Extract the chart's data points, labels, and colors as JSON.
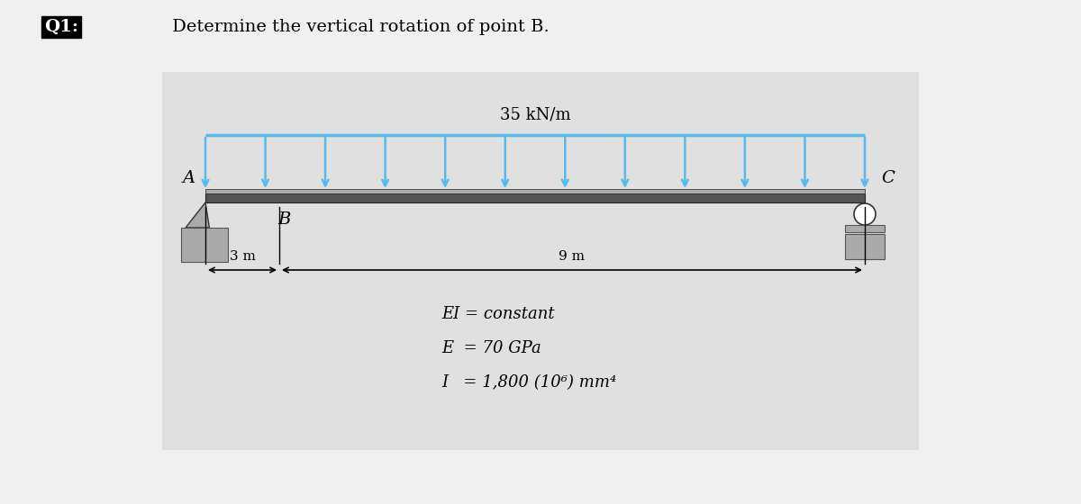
{
  "title_q": "Q1:",
  "title_rest": " Determine the vertical rotation of point B.",
  "title_fontsize": 14,
  "background_color": "#f0f0f0",
  "diagram_bg_color": "#e0e0e0",
  "beam_color": "#2c2c2c",
  "beam_top_color": "#c8c8c8",
  "load_color": "#55bbee",
  "load_label": "35 kN/m",
  "point_A_label": "A",
  "point_B_label": "B",
  "point_C_label": "C",
  "dim_3m": "3 m",
  "dim_9m": "9 m",
  "info_line1": "EI = constant",
  "info_line2": "E  = 70 GPa",
  "info_line3": "I   = 1,800 (10⁶) mm⁴",
  "n_arrows": 12
}
